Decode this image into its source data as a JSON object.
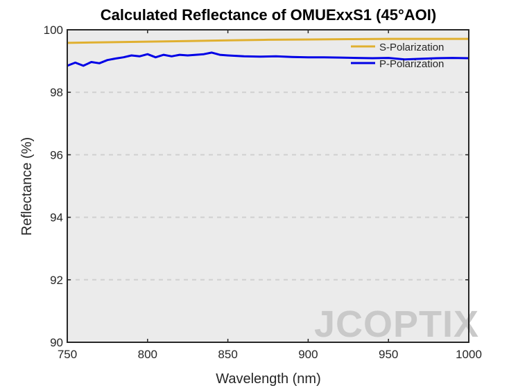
{
  "chart_data": {
    "type": "line",
    "title": "Calculated Reflectance of OMUExxS1 (45°AOI)",
    "xlabel": "Wavelength (nm)",
    "ylabel": "Reflectance (%)",
    "xlim": [
      750,
      1000
    ],
    "ylim": [
      90,
      100
    ],
    "xticks": [
      750,
      800,
      850,
      900,
      950,
      1000
    ],
    "yticks": [
      90,
      92,
      94,
      96,
      98,
      100
    ],
    "grid": "horizontal dashed",
    "legend_position": "top-right",
    "series": [
      {
        "name": "S-Polarization",
        "color": "#e0b030",
        "x": [
          750,
          775,
          800,
          825,
          850,
          875,
          900,
          925,
          950,
          975,
          1000
        ],
        "y": [
          99.58,
          99.6,
          99.62,
          99.64,
          99.66,
          99.68,
          99.69,
          99.7,
          99.71,
          99.71,
          99.71
        ]
      },
      {
        "name": "P-Polarization",
        "color": "#0000e6",
        "x": [
          750,
          755,
          760,
          765,
          770,
          775,
          780,
          785,
          790,
          795,
          800,
          805,
          810,
          815,
          820,
          825,
          830,
          835,
          840,
          845,
          850,
          860,
          870,
          880,
          890,
          900,
          910,
          920,
          930,
          940,
          950,
          960,
          970,
          980,
          990,
          1000
        ],
        "y": [
          98.85,
          98.95,
          98.85,
          98.97,
          98.93,
          99.03,
          99.08,
          99.12,
          99.18,
          99.15,
          99.22,
          99.12,
          99.2,
          99.15,
          99.2,
          99.18,
          99.2,
          99.22,
          99.27,
          99.2,
          99.18,
          99.15,
          99.14,
          99.15,
          99.13,
          99.12,
          99.12,
          99.11,
          99.1,
          99.09,
          99.1,
          99.05,
          99.07,
          99.09,
          99.1,
          99.09
        ]
      }
    ]
  },
  "watermark": "JCOPTIX",
  "colors": {
    "plot_background": "#ebebeb",
    "grid": "#d0d0d0"
  }
}
